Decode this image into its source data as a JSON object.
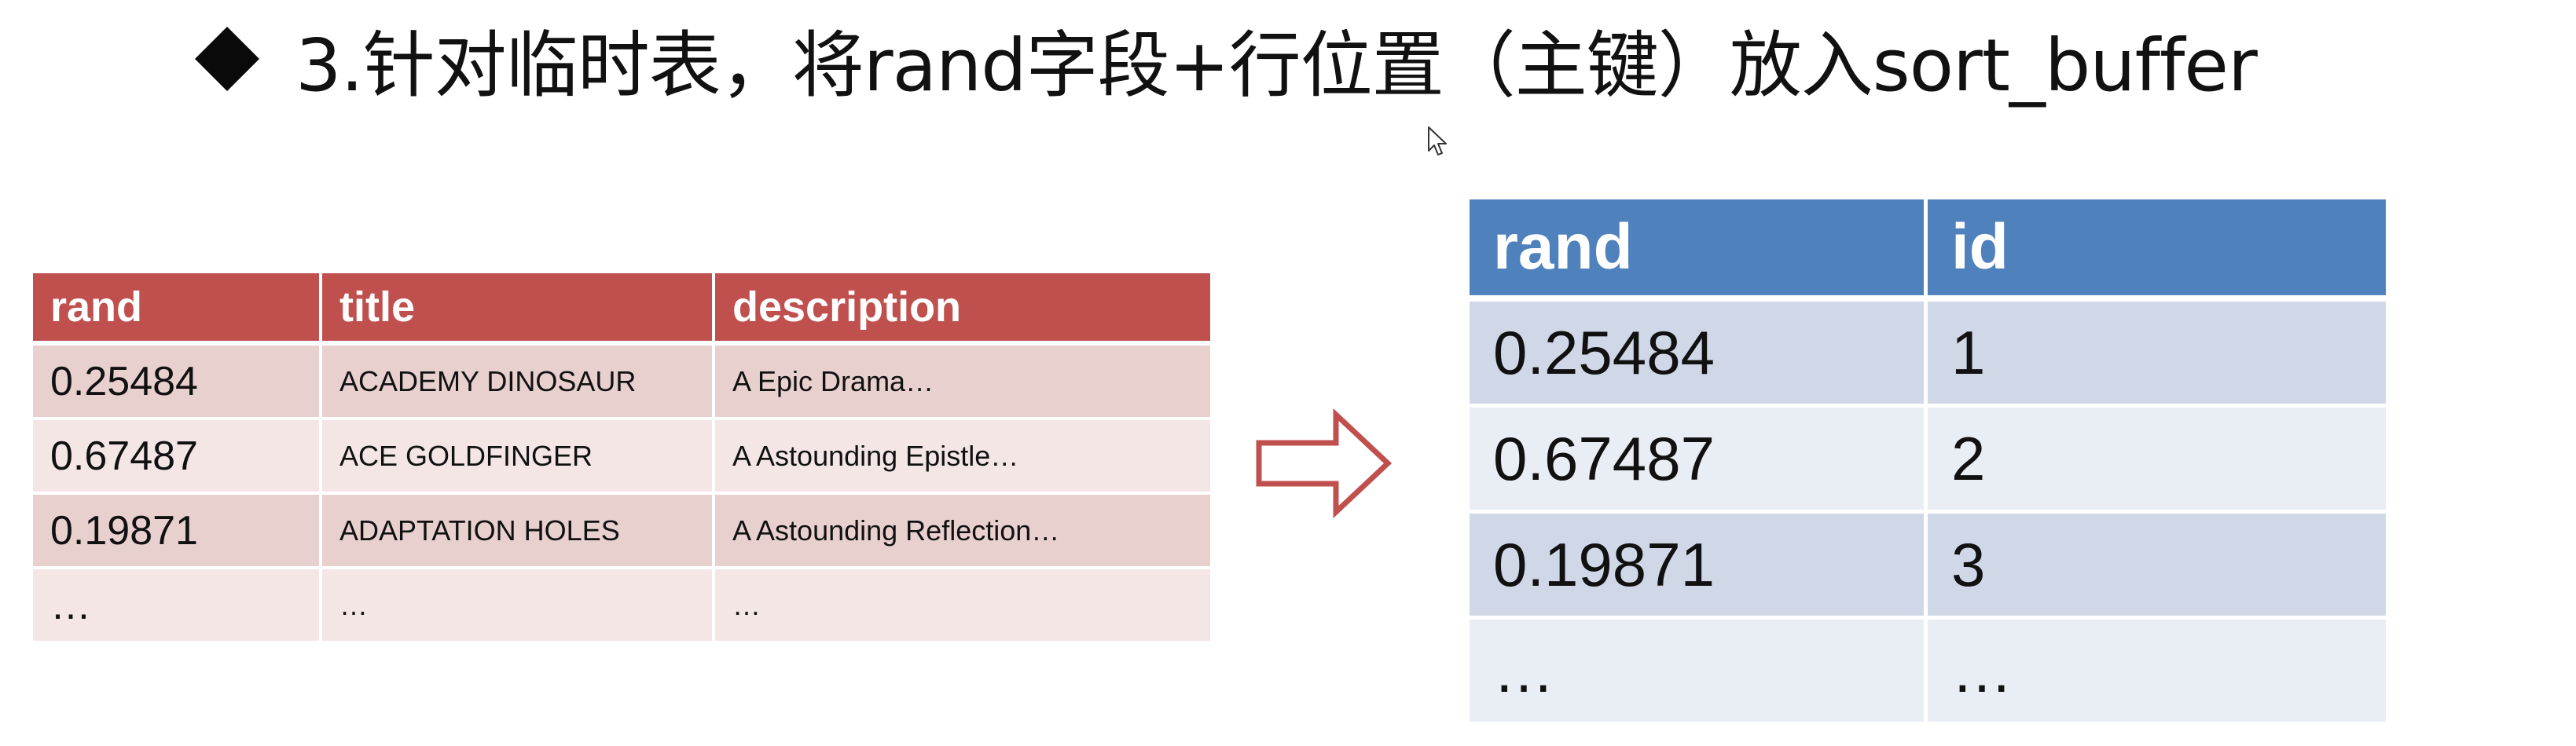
{
  "slide": {
    "heading_text": "3.针对临时表，将rand字段+行位置（主键）放入sort_buffer"
  },
  "left_table": {
    "headers": [
      "rand",
      "title",
      "description"
    ],
    "rows": [
      {
        "rand": "0.25484",
        "title": "ACADEMY DINOSAUR",
        "description": "A Epic Drama…"
      },
      {
        "rand": "0.67487",
        "title": "ACE GOLDFINGER",
        "description": "A Astounding Epistle…"
      },
      {
        "rand": "0.19871",
        "title": "ADAPTATION  HOLES",
        "description": "A Astounding Reflection…"
      },
      {
        "rand": "…",
        "title": "…",
        "description": "…"
      }
    ]
  },
  "right_table": {
    "headers": [
      "rand",
      "id"
    ],
    "rows": [
      {
        "rand": "0.25484",
        "id": "1"
      },
      {
        "rand": "0.67487",
        "id": "2"
      },
      {
        "rand": "0.19871",
        "id": "3"
      },
      {
        "rand": "…",
        "id": "…"
      }
    ]
  },
  "colors": {
    "left_header": "#c0504d",
    "left_row_dark": "#e8d0cf",
    "left_row_light": "#f3e6e5",
    "right_header": "#4f81bd",
    "right_row_dark": "#d0d8e8",
    "right_row_light": "#e9edf4",
    "arrow_stroke": "#c0504d"
  },
  "icons": {
    "bullet": "diamond-bullet-icon",
    "arrow": "right-arrow-icon",
    "cursor": "mouse-pointer-icon"
  }
}
